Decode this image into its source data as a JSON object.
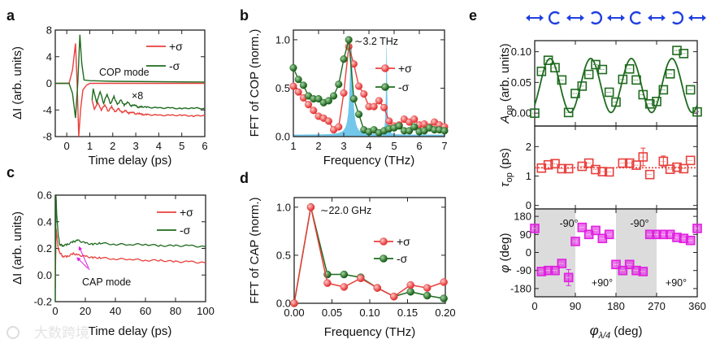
{
  "colors": {
    "plus": "#e8403c",
    "minus": "#1e6b1e",
    "shade": "#5bbde8",
    "magenta": "#e020e0",
    "gray": "#dcdcdc",
    "blue": "#1f3fe0"
  },
  "watermark": "大数跨境",
  "chart_data": [
    {
      "id": "a",
      "letter": "a",
      "type": "line",
      "xlabel": "Time delay (ps)",
      "ylabel": "ΔI (arb. units)",
      "xlim": [
        -0.5,
        6
      ],
      "ylim": [
        -8,
        8
      ],
      "xticks": [
        {
          "v": 0,
          "l": "0"
        },
        {
          "v": 1,
          "l": "1"
        },
        {
          "v": 2,
          "l": "2"
        },
        {
          "v": 3,
          "l": "3"
        },
        {
          "v": 4,
          "l": "4"
        },
        {
          "v": 5,
          "l": "5"
        },
        {
          "v": 6,
          "l": "6"
        }
      ],
      "yticks": [
        {
          "v": -8,
          "l": "-8"
        },
        {
          "v": -4,
          "l": "-4"
        },
        {
          "v": 0,
          "l": "0"
        },
        {
          "v": 4,
          "l": "4"
        },
        {
          "v": 8,
          "l": "8"
        }
      ],
      "legend": [
        "+σ",
        "-σ"
      ],
      "annotations": [
        "COP mode",
        "×8"
      ],
      "series": [
        {
          "name": "+σ",
          "color": "plus",
          "x": [
            -0.5,
            0.1,
            0.25,
            0.38,
            0.45,
            0.52,
            0.6,
            0.7,
            0.85,
            1,
            2,
            6
          ],
          "y": [
            0,
            0,
            2,
            6,
            0,
            -8,
            -4,
            -1,
            -0.3,
            0,
            0,
            0
          ]
        },
        {
          "name": "-σ",
          "color": "minus",
          "x": [
            -0.5,
            0.1,
            0.25,
            0.38,
            0.48,
            0.57,
            0.65,
            0.75,
            1,
            2,
            6
          ],
          "y": [
            0,
            0,
            -1.5,
            -5.2,
            0,
            7.3,
            3,
            0.5,
            0.4,
            0.3,
            0.2
          ]
        },
        {
          "name": "+σ ×8",
          "color": "plus",
          "x": [
            1.1,
            1.2,
            1.35,
            1.5,
            1.65,
            1.8,
            1.95,
            2.1,
            2.25,
            2.4,
            2.55,
            2.7,
            2.85,
            3.0,
            3.15,
            3.3,
            3.5,
            4,
            4.5,
            5,
            5.5,
            6
          ],
          "y": [
            -2.5,
            -3.9,
            -2.9,
            -4.0,
            -3.2,
            -4.2,
            -3.5,
            -4.3,
            -3.8,
            -4.4,
            -4.1,
            -4.5,
            -4.3,
            -4.6,
            -4.5,
            -4.7,
            -4.7,
            -4.8,
            -4.8,
            -4.8,
            -4.9,
            -4.8
          ]
        },
        {
          "name": "-σ ×8",
          "color": "minus",
          "x": [
            1.1,
            1.15,
            1.3,
            1.45,
            1.6,
            1.75,
            1.9,
            2.05,
            2.2,
            2.35,
            2.5,
            2.65,
            2.8,
            2.95,
            3.1,
            3.25,
            3.5,
            4,
            4.5,
            5,
            5.5,
            6
          ],
          "y": [
            -2.5,
            -0.8,
            -2.9,
            -1.2,
            -3.0,
            -1.6,
            -3.1,
            -2.0,
            -3.2,
            -2.5,
            -3.3,
            -2.8,
            -3.4,
            -3.2,
            -3.6,
            -3.5,
            -3.6,
            -3.7,
            -3.7,
            -3.8,
            -3.7,
            -3.8
          ]
        }
      ]
    },
    {
      "id": "b",
      "letter": "b",
      "type": "line",
      "xlabel": "Frequency (THz)",
      "ylabel": "FFT of COP (norm.)",
      "xlim": [
        1,
        7
      ],
      "ylim": [
        0,
        1.1
      ],
      "xticks": [
        {
          "v": 1,
          "l": "1"
        },
        {
          "v": 2,
          "l": "2"
        },
        {
          "v": 3,
          "l": "3"
        },
        {
          "v": 4,
          "l": "4"
        },
        {
          "v": 5,
          "l": "5"
        },
        {
          "v": 6,
          "l": "6"
        },
        {
          "v": 7,
          "l": "7"
        }
      ],
      "yticks": [
        {
          "v": 0,
          "l": "0.0"
        },
        {
          "v": 0.5,
          "l": "0.5"
        },
        {
          "v": 1,
          "l": "1.0"
        }
      ],
      "legend": [
        "+σ",
        "-σ"
      ],
      "annotations": [
        "∼3.2 THz"
      ],
      "shaded_peaks": [
        {
          "center": 3.3,
          "height": 0.95,
          "width": 0.14
        },
        {
          "center": 4.7,
          "height": 1.0,
          "width": 0.05
        }
      ],
      "x": [
        1,
        1.2,
        1.4,
        1.6,
        1.8,
        2,
        2.2,
        2.4,
        2.6,
        2.8,
        3,
        3.2,
        3.4,
        3.6,
        3.8,
        4,
        4.2,
        4.4,
        4.6,
        4.8,
        5,
        5.2,
        5.4,
        5.6,
        5.8,
        6,
        6.2,
        6.4,
        6.6,
        6.8,
        7
      ],
      "series": [
        {
          "name": "+σ",
          "color": "plus",
          "y": [
            0.52,
            0.46,
            0.4,
            0.33,
            0.27,
            0.21,
            0.19,
            0.16,
            0.07,
            0.1,
            0.45,
            0.93,
            0.75,
            0.52,
            0.44,
            0.31,
            0.31,
            0.37,
            0.3,
            0.16,
            0.11,
            0.12,
            0.18,
            0.15,
            0.18,
            0.12,
            0.13,
            0.1,
            0.15,
            0.12,
            0.1
          ]
        },
        {
          "name": "-σ",
          "color": "minus",
          "y": [
            0.71,
            0.59,
            0.53,
            0.42,
            0.39,
            0.39,
            0.35,
            0.37,
            0.42,
            0.54,
            0.8,
            1.0,
            0.39,
            0.23,
            0.07,
            0.05,
            0.07,
            0.04,
            0.06,
            0.08,
            0.09,
            0.11,
            0.06,
            0.06,
            0.1,
            0.05,
            0.06,
            0.09,
            0.07,
            0.07,
            0.06
          ]
        }
      ]
    },
    {
      "id": "c",
      "letter": "c",
      "type": "line",
      "xlabel": "Time delay (ps)",
      "ylabel": "ΔI (arb. units)",
      "xlim": [
        0,
        100
      ],
      "ylim": [
        -0.2,
        0.6
      ],
      "xticks": [
        {
          "v": 0,
          "l": "0"
        },
        {
          "v": 20,
          "l": "20"
        },
        {
          "v": 40,
          "l": "40"
        },
        {
          "v": 60,
          "l": "60"
        },
        {
          "v": 80,
          "l": "80"
        },
        {
          "v": 100,
          "l": "100"
        }
      ],
      "yticks": [
        {
          "v": -0.2,
          "l": "-0.2"
        },
        {
          "v": 0,
          "l": "0.0"
        },
        {
          "v": 0.2,
          "l": "0.2"
        },
        {
          "v": 0.4,
          "l": "0.4"
        },
        {
          "v": 0.6,
          "l": "0.6"
        }
      ],
      "legend": [
        "+σ",
        "-σ"
      ],
      "annotations": [
        "CAP mode"
      ],
      "x": [
        0,
        0.5,
        1,
        2,
        3,
        5,
        8,
        12,
        15,
        20,
        25,
        30,
        40,
        50,
        60,
        70,
        80,
        90,
        100
      ],
      "series": [
        {
          "name": "+σ",
          "color": "plus",
          "y": [
            -0.1,
            0.35,
            0.3,
            0.2,
            0.17,
            0.14,
            0.14,
            0.16,
            0.15,
            0.14,
            0.13,
            0.13,
            0.12,
            0.12,
            0.11,
            0.11,
            0.1,
            0.1,
            0.09
          ]
        },
        {
          "name": "-σ",
          "color": "minus",
          "y": [
            -0.2,
            0.6,
            0.45,
            0.3,
            0.23,
            0.22,
            0.23,
            0.25,
            0.26,
            0.24,
            0.23,
            0.24,
            0.23,
            0.23,
            0.23,
            0.22,
            0.22,
            0.22,
            0.21
          ]
        }
      ]
    },
    {
      "id": "d",
      "letter": "d",
      "type": "line",
      "xlabel": "Frequency (THz)",
      "ylabel": "FFT of CAP (norm.)",
      "xlim": [
        0,
        0.2
      ],
      "ylim": [
        0,
        1.1
      ],
      "xticks": [
        {
          "v": 0,
          "l": "0.00"
        },
        {
          "v": 0.05,
          "l": "0.05"
        },
        {
          "v": 0.1,
          "l": "0.10"
        },
        {
          "v": 0.15,
          "l": "0.15"
        },
        {
          "v": 0.2,
          "l": "0.20"
        }
      ],
      "yticks": [
        {
          "v": 0,
          "l": "0.0"
        },
        {
          "v": 0.5,
          "l": "0.5"
        },
        {
          "v": 1,
          "l": "1.0"
        }
      ],
      "legend": [
        "+σ",
        "-σ"
      ],
      "annotations": [
        "∼22.0 GHz"
      ],
      "x": [
        0,
        0.022,
        0.044,
        0.066,
        0.088,
        0.11,
        0.132,
        0.154,
        0.176,
        0.198
      ],
      "series": [
        {
          "name": "-σ",
          "color": "minus",
          "y": [
            0,
            1,
            0.3,
            0.3,
            0.27,
            0.16,
            0.07,
            0.12,
            0.08,
            0.05
          ]
        },
        {
          "name": "+σ",
          "color": "plus",
          "y": [
            0,
            1,
            0.21,
            0.17,
            0.26,
            0.16,
            0.07,
            0.19,
            0.16,
            0.22
          ]
        }
      ]
    },
    {
      "id": "e",
      "letter": "e",
      "type": "scatter",
      "xlabel": {
        "main": "φ",
        "sub": "λ/4",
        "unit": " (deg)"
      },
      "xlim": [
        0,
        360
      ],
      "xticks": [
        {
          "v": 0,
          "l": "0"
        },
        {
          "v": 90,
          "l": "90"
        },
        {
          "v": 180,
          "l": "180"
        },
        {
          "v": 270,
          "l": "270"
        },
        {
          "v": 360,
          "l": "360"
        }
      ],
      "polarization_sequence": [
        "linear",
        "circular-right",
        "linear",
        "circular-left",
        "linear",
        "circular-right",
        "linear",
        "circular-left",
        "linear"
      ],
      "subplots": [
        {
          "ylabel": {
            "main": "A",
            "sub": "op",
            "unit": " (arb. units)"
          },
          "ylim": [
            -0.021,
            0.118
          ],
          "color": "minus",
          "yticks": [
            {
              "v": 0,
              "l": "0.00"
            },
            {
              "v": 0.05,
              "l": "0.05"
            },
            {
              "v": 0.1,
              "l": "0.10"
            }
          ],
          "x": [
            0,
            15,
            30,
            45,
            60,
            75,
            90,
            105,
            120,
            135,
            150,
            165,
            180,
            195,
            210,
            225,
            240,
            255,
            270,
            285,
            300,
            315,
            330,
            345,
            360
          ],
          "y": [
            0.0,
            0.068,
            0.086,
            0.074,
            0.054,
            0.001,
            0.032,
            0.044,
            0.063,
            0.079,
            0.071,
            0.034,
            0.018,
            0.055,
            0.072,
            0.054,
            0.03,
            0.015,
            0.019,
            0.038,
            0.064,
            0.102,
            0.097,
            0.038,
            0.002
          ],
          "fit": {
            "offset": 0.045,
            "amplitude": 0.044,
            "period": 90,
            "peak_at": 34
          }
        },
        {
          "ylabel": {
            "main": "τ",
            "sub": "op",
            "unit": " (ps)"
          },
          "ylim": [
            -0.12,
            2.7
          ],
          "color": "plus",
          "reference_line": 1.28,
          "yticks": [
            {
              "v": 0,
              "l": "0"
            },
            {
              "v": 1,
              "l": "1"
            },
            {
              "v": 2,
              "l": "2"
            }
          ],
          "x": [
            15,
            30,
            45,
            60,
            75,
            105,
            120,
            135,
            150,
            165,
            195,
            210,
            225,
            240,
            255,
            285,
            300,
            315,
            330,
            345
          ],
          "y": [
            1.27,
            1.38,
            1.42,
            1.25,
            1.25,
            1.33,
            1.44,
            1.22,
            1.15,
            1.14,
            1.44,
            1.44,
            1.37,
            1.65,
            1.05,
            1.5,
            1.23,
            1.3,
            1.25,
            1.53
          ],
          "errors": {
            "240": 0.3,
            "285": 0.18
          }
        },
        {
          "ylabel": {
            "main": "φ",
            "sub": "",
            "unit": " (deg)"
          },
          "ylim": [
            -221,
            217
          ],
          "color": "magenta",
          "yticks": [
            {
              "v": -180,
              "l": "-180"
            },
            {
              "v": -90,
              "l": "-90"
            },
            {
              "v": 0,
              "l": "0"
            },
            {
              "v": 90,
              "l": "90"
            },
            {
              "v": 180,
              "l": "180"
            }
          ],
          "shaded_ranges": [
            [
              0,
              90
            ],
            [
              180,
              270
            ]
          ],
          "region_labels": [
            "-90°",
            "+90°",
            "-90°",
            "+90°"
          ],
          "x": [
            0,
            15,
            30,
            45,
            60,
            75,
            90,
            105,
            120,
            135,
            150,
            165,
            180,
            195,
            210,
            225,
            240,
            255,
            270,
            285,
            300,
            315,
            330,
            345,
            360
          ],
          "y": [
            120,
            -95,
            -90,
            -90,
            -55,
            -125,
            55,
            125,
            90,
            110,
            70,
            90,
            -60,
            -90,
            -60,
            -90,
            -95,
            90,
            90,
            90,
            90,
            75,
            70,
            60,
            120
          ],
          "errors": {
            "75": 40
          }
        }
      ]
    }
  ]
}
